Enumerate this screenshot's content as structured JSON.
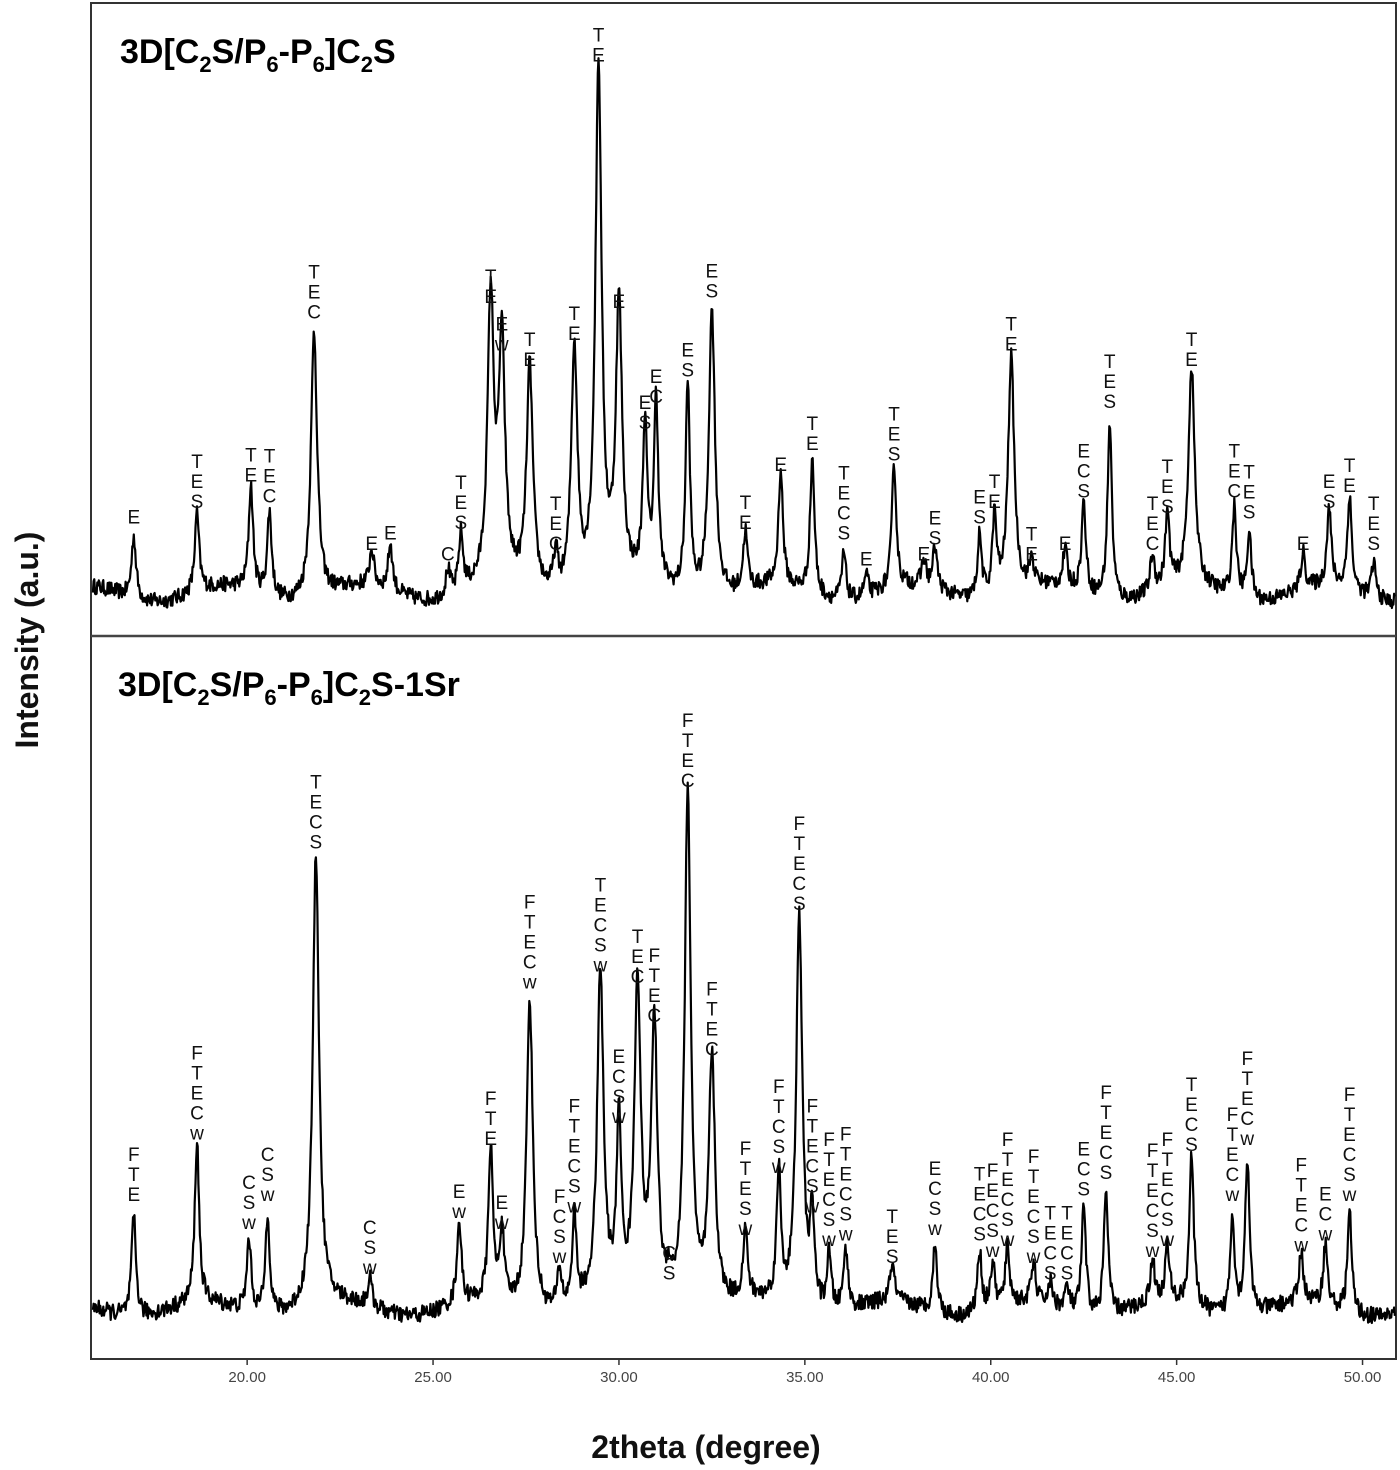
{
  "chart_data": {
    "type": "line",
    "xlabel": "2theta (degree)",
    "ylabel": "Intensity (a.u.)",
    "xlim": [
      15.8,
      50.9
    ],
    "x_ticks": [
      "20.00",
      "25.00",
      "30.00",
      "35.00",
      "40.00",
      "45.00",
      "50.00"
    ],
    "colors": {
      "trace": "#000000",
      "frame": "#333333",
      "divider": "#444444"
    },
    "panels": [
      {
        "id": "top",
        "title": {
          "main1": "3D[C",
          "sub1": "2",
          "main2": "S/P",
          "sub2": "6",
          "main3": "-P",
          "sub3": "6",
          "main4": "]C",
          "sub4": "2",
          "main5": "S",
          "suffix": ""
        },
        "baseline": 0.06,
        "peaks": [
          {
            "x": 16.95,
            "h": 0.12,
            "labels": [
              "E"
            ]
          },
          {
            "x": 18.65,
            "h": 0.15,
            "labels": [
              "T",
              "E",
              "S"
            ]
          },
          {
            "x": 20.1,
            "h": 0.2,
            "labels": [
              "T",
              "E"
            ]
          },
          {
            "x": 20.6,
            "h": 0.16,
            "labels": [
              "T",
              "E",
              "C"
            ]
          },
          {
            "x": 21.8,
            "h": 0.51,
            "labels": [
              "T",
              "E",
              "C"
            ]
          },
          {
            "x": 23.35,
            "h": 0.07,
            "labels": [
              "E"
            ]
          },
          {
            "x": 23.85,
            "h": 0.09,
            "labels": [
              "E"
            ]
          },
          {
            "x": 25.4,
            "h": 0.05,
            "labels": [
              "C"
            ]
          },
          {
            "x": 25.75,
            "h": 0.11,
            "labels": [
              "T",
              "E",
              "S"
            ]
          },
          {
            "x": 26.55,
            "h": 0.54,
            "labels": [
              "T",
              "E"
            ]
          },
          {
            "x": 26.85,
            "h": 0.45,
            "labels": [
              "E",
              "w"
            ]
          },
          {
            "x": 27.6,
            "h": 0.42,
            "labels": [
              "T",
              "E"
            ]
          },
          {
            "x": 28.3,
            "h": 0.07,
            "labels": [
              "T",
              "E",
              "C"
            ]
          },
          {
            "x": 28.8,
            "h": 0.47,
            "labels": [
              "T",
              "E"
            ]
          },
          {
            "x": 29.45,
            "h": 1.0,
            "labels": [
              "T",
              "E"
            ]
          },
          {
            "x": 30.0,
            "h": 0.53,
            "labels": [
              "E"
            ]
          },
          {
            "x": 30.7,
            "h": 0.3,
            "labels": [
              "E",
              "S"
            ]
          },
          {
            "x": 31.0,
            "h": 0.35,
            "labels": [
              "E",
              "C"
            ]
          },
          {
            "x": 31.85,
            "h": 0.4,
            "labels": [
              "E",
              "S"
            ]
          },
          {
            "x": 32.5,
            "h": 0.55,
            "labels": [
              "E",
              "S"
            ]
          },
          {
            "x": 33.4,
            "h": 0.11,
            "labels": [
              "T",
              "E"
            ]
          },
          {
            "x": 34.35,
            "h": 0.22,
            "labels": [
              "E"
            ]
          },
          {
            "x": 35.2,
            "h": 0.26,
            "labels": [
              "T",
              "E"
            ]
          },
          {
            "x": 36.05,
            "h": 0.09,
            "labels": [
              "T",
              "E",
              "C",
              "S"
            ]
          },
          {
            "x": 36.65,
            "h": 0.04,
            "labels": [
              "E"
            ]
          },
          {
            "x": 37.4,
            "h": 0.24,
            "labels": [
              "T",
              "E",
              "S"
            ]
          },
          {
            "x": 38.2,
            "h": 0.05,
            "labels": [
              "E"
            ]
          },
          {
            "x": 38.5,
            "h": 0.08,
            "labels": [
              "E",
              "S"
            ]
          },
          {
            "x": 39.7,
            "h": 0.12,
            "labels": [
              "E",
              "S"
            ]
          },
          {
            "x": 40.1,
            "h": 0.15,
            "labels": [
              "T",
              "E"
            ]
          },
          {
            "x": 40.55,
            "h": 0.45,
            "labels": [
              "T",
              "E"
            ]
          },
          {
            "x": 41.1,
            "h": 0.05,
            "labels": [
              "T",
              "E"
            ]
          },
          {
            "x": 42.0,
            "h": 0.07,
            "labels": [
              "E"
            ]
          },
          {
            "x": 42.5,
            "h": 0.17,
            "labels": [
              "E",
              "C",
              "S"
            ]
          },
          {
            "x": 43.2,
            "h": 0.34,
            "labels": [
              "T",
              "E",
              "S"
            ]
          },
          {
            "x": 44.35,
            "h": 0.07,
            "labels": [
              "T",
              "E",
              "C"
            ]
          },
          {
            "x": 44.75,
            "h": 0.14,
            "labels": [
              "T",
              "E",
              "S"
            ]
          },
          {
            "x": 45.4,
            "h": 0.42,
            "labels": [
              "T",
              "E"
            ]
          },
          {
            "x": 46.55,
            "h": 0.17,
            "labels": [
              "T",
              "E",
              "C"
            ]
          },
          {
            "x": 46.95,
            "h": 0.13,
            "labels": [
              "T",
              "E",
              "S"
            ]
          },
          {
            "x": 48.4,
            "h": 0.07,
            "labels": [
              "E"
            ]
          },
          {
            "x": 49.1,
            "h": 0.15,
            "labels": [
              "E",
              "S"
            ]
          },
          {
            "x": 49.65,
            "h": 0.18,
            "labels": [
              "T",
              "E"
            ]
          },
          {
            "x": 50.3,
            "h": 0.07,
            "labels": [
              "T",
              "E",
              "S"
            ]
          }
        ]
      },
      {
        "id": "bottom",
        "title": {
          "main1": "3D[C",
          "sub1": "2",
          "main2": "S/P",
          "sub2": "6",
          "main3": "-P",
          "sub3": "6",
          "main4": "]C",
          "sub4": "2",
          "main5": "S",
          "suffix": "-1Sr"
        },
        "baseline": 0.05,
        "peaks": [
          {
            "x": 16.95,
            "h": 0.18,
            "labels": [
              "F",
              "T",
              "E"
            ]
          },
          {
            "x": 18.65,
            "h": 0.29,
            "labels": [
              "F",
              "T",
              "E",
              "C",
              "w"
            ]
          },
          {
            "x": 20.05,
            "h": 0.13,
            "labels": [
              "C",
              "S",
              "w"
            ]
          },
          {
            "x": 20.55,
            "h": 0.18,
            "labels": [
              "C",
              "S",
              "w"
            ]
          },
          {
            "x": 21.85,
            "h": 0.81,
            "labels": [
              "T",
              "E",
              "C",
              "S"
            ]
          },
          {
            "x": 23.3,
            "h": 0.05,
            "labels": [
              "C",
              "S",
              "w"
            ]
          },
          {
            "x": 25.7,
            "h": 0.15,
            "labels": [
              "E",
              "w"
            ]
          },
          {
            "x": 26.55,
            "h": 0.28,
            "labels": [
              "F",
              "T",
              "E"
            ]
          },
          {
            "x": 26.85,
            "h": 0.13,
            "labels": [
              "E",
              "w"
            ]
          },
          {
            "x": 27.6,
            "h": 0.56,
            "labels": [
              "F",
              "T",
              "E",
              "C",
              "w"
            ]
          },
          {
            "x": 28.4,
            "h": 0.07,
            "labels": [
              "F",
              "C",
              "S",
              "w"
            ]
          },
          {
            "x": 28.8,
            "h": 0.16,
            "labels": [
              "F",
              "T",
              "E",
              "C",
              "S",
              "w"
            ]
          },
          {
            "x": 29.5,
            "h": 0.59,
            "labels": [
              "T",
              "E",
              "C",
              "S",
              "w"
            ]
          },
          {
            "x": 30.0,
            "h": 0.32,
            "labels": [
              "E",
              "C",
              "S",
              "w"
            ]
          },
          {
            "x": 30.5,
            "h": 0.57,
            "labels": [
              "T",
              "E",
              "C"
            ]
          },
          {
            "x": 30.95,
            "h": 0.5,
            "labels": [
              "F",
              "T",
              "E",
              "C"
            ]
          },
          {
            "x": 31.35,
            "h": 0.04,
            "labels": [
              "C",
              "S"
            ]
          },
          {
            "x": 31.85,
            "h": 0.92,
            "labels": [
              "F",
              "T",
              "E",
              "C"
            ]
          },
          {
            "x": 32.5,
            "h": 0.44,
            "labels": [
              "F",
              "T",
              "E",
              "C"
            ]
          },
          {
            "x": 33.4,
            "h": 0.12,
            "labels": [
              "F",
              "T",
              "E",
              "S",
              "w"
            ]
          },
          {
            "x": 34.3,
            "h": 0.23,
            "labels": [
              "F",
              "T",
              "C",
              "S",
              "w"
            ]
          },
          {
            "x": 34.85,
            "h": 0.7,
            "labels": [
              "F",
              "T",
              "E",
              "C",
              "S"
            ]
          },
          {
            "x": 35.2,
            "h": 0.16,
            "labels": [
              "F",
              "T",
              "E",
              "C",
              "S",
              "w"
            ]
          },
          {
            "x": 35.65,
            "h": 0.1,
            "labels": [
              "F",
              "T",
              "E",
              "C",
              "S",
              "w"
            ]
          },
          {
            "x": 36.1,
            "h": 0.11,
            "labels": [
              "F",
              "T",
              "E",
              "C",
              "S",
              "w"
            ]
          },
          {
            "x": 37.35,
            "h": 0.07,
            "labels": [
              "T",
              "E",
              "S"
            ]
          },
          {
            "x": 38.5,
            "h": 0.12,
            "labels": [
              "E",
              "C",
              "S",
              "w"
            ]
          },
          {
            "x": 39.7,
            "h": 0.11,
            "labels": [
              "T",
              "E",
              "C",
              "S"
            ]
          },
          {
            "x": 40.05,
            "h": 0.08,
            "labels": [
              "F",
              "E",
              "C",
              "S",
              "w"
            ]
          },
          {
            "x": 40.45,
            "h": 0.1,
            "labels": [
              "F",
              "T",
              "E",
              "C",
              "S",
              "w"
            ]
          },
          {
            "x": 41.15,
            "h": 0.07,
            "labels": [
              "F",
              "T",
              "E",
              "C",
              "S",
              "w"
            ]
          },
          {
            "x": 41.6,
            "h": 0.04,
            "labels": [
              "T",
              "E",
              "C",
              "S"
            ]
          },
          {
            "x": 42.05,
            "h": 0.04,
            "labels": [
              "T",
              "E",
              "C",
              "S"
            ]
          },
          {
            "x": 42.5,
            "h": 0.19,
            "labels": [
              "E",
              "C",
              "S"
            ]
          },
          {
            "x": 43.1,
            "h": 0.22,
            "labels": [
              "F",
              "T",
              "E",
              "C",
              "S"
            ]
          },
          {
            "x": 44.35,
            "h": 0.08,
            "labels": [
              "F",
              "T",
              "E",
              "C",
              "S",
              "w"
            ]
          },
          {
            "x": 44.75,
            "h": 0.1,
            "labels": [
              "F",
              "T",
              "E",
              "C",
              "S",
              "w"
            ]
          },
          {
            "x": 45.4,
            "h": 0.27,
            "labels": [
              "T",
              "E",
              "C",
              "S"
            ]
          },
          {
            "x": 46.5,
            "h": 0.18,
            "labels": [
              "F",
              "T",
              "E",
              "C",
              "w"
            ]
          },
          {
            "x": 46.9,
            "h": 0.28,
            "labels": [
              "F",
              "T",
              "E",
              "C",
              "w"
            ]
          },
          {
            "x": 48.35,
            "h": 0.09,
            "labels": [
              "F",
              "T",
              "E",
              "C",
              "w"
            ]
          },
          {
            "x": 49.0,
            "h": 0.11,
            "labels": [
              "E",
              "C",
              "w"
            ]
          },
          {
            "x": 49.65,
            "h": 0.18,
            "labels": [
              "F",
              "T",
              "E",
              "C",
              "S",
              "w"
            ]
          }
        ]
      }
    ]
  }
}
